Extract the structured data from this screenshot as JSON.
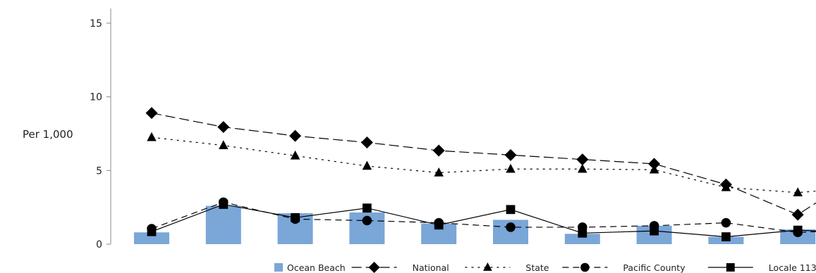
{
  "chart_data": {
    "type": "bar",
    "title": "",
    "xlabel": "",
    "ylabel": "Per 1,000",
    "ylim": [
      0,
      16
    ],
    "yticks": [
      0,
      5,
      10,
      15
    ],
    "ytick_labels": [
      "0",
      "5",
      "10",
      "15"
    ],
    "grid": false,
    "legend_position": "bottom-right",
    "x": [
      1,
      2,
      3,
      4,
      5,
      6,
      7,
      8,
      9,
      10
    ],
    "series": [
      {
        "name": "Ocean Beach",
        "kind": "bar",
        "color": "#7aa6d8",
        "values": [
          0.8,
          2.6,
          2.1,
          2.15,
          1.4,
          1.65,
          0.7,
          1.25,
          0.5,
          1.0
        ]
      },
      {
        "name": "National",
        "kind": "line",
        "marker": "diamond",
        "dash": "long-dash",
        "color": "#000000",
        "values": [
          8.9,
          7.95,
          7.35,
          6.9,
          6.35,
          6.05,
          5.75,
          5.45,
          4.05,
          2.0
        ],
        "trail_value": 2.8
      },
      {
        "name": "State",
        "kind": "line",
        "marker": "triangle",
        "dash": "dotted",
        "color": "#000000",
        "values": [
          7.25,
          6.7,
          6.0,
          5.3,
          4.85,
          5.1,
          5.1,
          5.05,
          3.85,
          3.5
        ],
        "trail_value": 3.6
      },
      {
        "name": "Pacific County",
        "kind": "line",
        "marker": "circle",
        "dash": "dashed",
        "color": "#000000",
        "values": [
          1.05,
          2.85,
          1.7,
          1.6,
          1.45,
          1.15,
          1.15,
          1.25,
          1.45,
          0.8
        ],
        "trail_value": 0.85
      },
      {
        "name": "Locale 113",
        "kind": "line",
        "marker": "square",
        "dash": "solid",
        "color": "#000000",
        "values": [
          0.85,
          2.7,
          1.8,
          2.45,
          1.3,
          2.35,
          0.75,
          0.9,
          0.5,
          0.95
        ],
        "trail_value": 0.9
      }
    ]
  }
}
